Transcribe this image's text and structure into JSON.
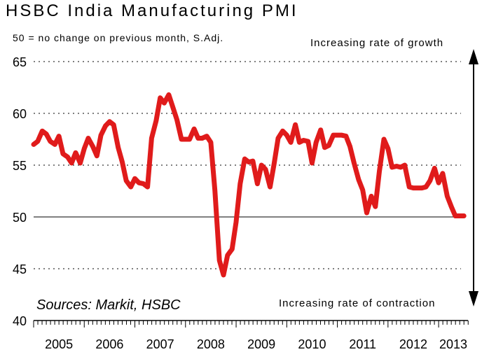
{
  "title": "HSBC India Manufacturing PMI",
  "subtitle": "50 = no change on previous month, S.Adj.",
  "annotations": {
    "growth": "Increasing rate of growth",
    "contraction": "Increasing rate of contraction",
    "source": "Sources: Markit, HSBC"
  },
  "colors": {
    "series": "#e01b1b",
    "axis": "#000000",
    "grid": "#000000"
  },
  "chart_data": {
    "type": "line",
    "title": "HSBC India Manufacturing PMI",
    "ylim": [
      40,
      65
    ],
    "yticks": [
      "40",
      "45",
      "50",
      "55",
      "60",
      "65"
    ],
    "xlim": [
      2005,
      2013.58
    ],
    "xticks": [
      "2005",
      "2006",
      "2007",
      "2008",
      "2009",
      "2010",
      "2011",
      "2012",
      "2013"
    ],
    "grid": "dashed horizontal at 45, 55, 60, 65; solid at 50",
    "series": [
      {
        "x": [
          2005.0,
          2005.08,
          2005.17,
          2005.25,
          2005.33,
          2005.42,
          2005.5,
          2005.58,
          2005.67,
          2005.75,
          2005.83,
          2005.92,
          2006.0,
          2006.08,
          2006.17,
          2006.25,
          2006.33,
          2006.42,
          2006.5,
          2006.58,
          2006.67,
          2006.75,
          2006.83,
          2006.92,
          2007.0,
          2007.08,
          2007.17,
          2007.25,
          2007.33,
          2007.42,
          2007.5,
          2007.58,
          2007.67,
          2007.75,
          2007.83,
          2007.92,
          2008.0,
          2008.08,
          2008.17,
          2008.25,
          2008.33,
          2008.42,
          2008.5,
          2008.58,
          2008.67,
          2008.75,
          2008.83,
          2008.92,
          2009.0,
          2009.08,
          2009.17,
          2009.25,
          2009.33,
          2009.42,
          2009.5,
          2009.58,
          2009.67,
          2009.75,
          2009.83,
          2009.92,
          2010.0,
          2010.08,
          2010.17,
          2010.25,
          2010.33,
          2010.42,
          2010.5,
          2010.58,
          2010.67,
          2010.75,
          2010.83,
          2010.92,
          2011.0,
          2011.08,
          2011.17,
          2011.25,
          2011.33,
          2011.42,
          2011.5,
          2011.58,
          2011.67,
          2011.75,
          2011.83,
          2011.92,
          2012.0,
          2012.08,
          2012.17,
          2012.25,
          2012.33,
          2012.42,
          2012.5,
          2012.58,
          2012.67,
          2012.75,
          2012.83,
          2012.92,
          2013.0,
          2013.08,
          2013.17,
          2013.25,
          2013.33,
          2013.42,
          2013.5
        ],
        "values": [
          57.0,
          57.3,
          58.3,
          58.0,
          57.3,
          57.0,
          57.8,
          56.1,
          55.8,
          55.2,
          56.2,
          55.2,
          56.6,
          57.6,
          56.8,
          55.9,
          57.9,
          58.8,
          59.2,
          58.9,
          56.7,
          55.3,
          53.5,
          52.9,
          53.7,
          53.3,
          53.2,
          52.9,
          57.6,
          59.3,
          61.5,
          61.0,
          61.8,
          60.6,
          59.4,
          57.5,
          57.5,
          57.5,
          58.5,
          57.6,
          57.6,
          57.8,
          57.2,
          52.6,
          45.8,
          44.4,
          46.3,
          46.9,
          49.5,
          53.2,
          55.6,
          55.3,
          55.4,
          53.2,
          55.0,
          54.6,
          52.9,
          55.1,
          57.6,
          58.3,
          57.9,
          57.2,
          58.9,
          57.2,
          57.4,
          57.3,
          55.2,
          57.2,
          58.4,
          56.7,
          56.9,
          57.9,
          57.9,
          57.9,
          57.8,
          56.8,
          55.2,
          53.6,
          52.6,
          50.4,
          52.0,
          51.0,
          54.4,
          57.5,
          56.6,
          54.8,
          54.9,
          54.8,
          55.0,
          52.9,
          52.8,
          52.8,
          52.8,
          52.9,
          53.5,
          54.7,
          53.3,
          54.2,
          52.0,
          51.0,
          50.1,
          50.1,
          50.1
        ]
      }
    ]
  }
}
